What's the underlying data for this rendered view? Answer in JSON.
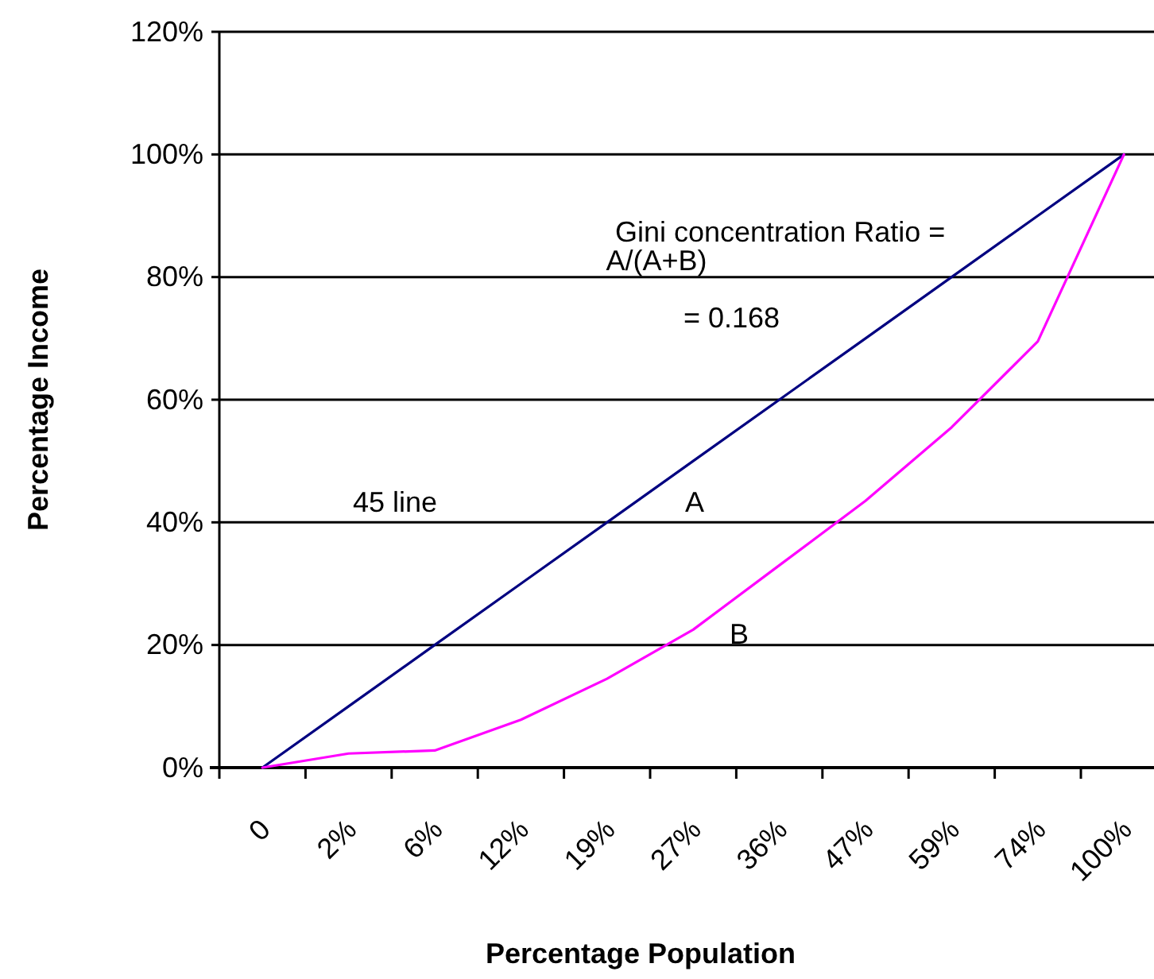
{
  "chart_data": {
    "type": "line",
    "xlabel": "Percentage Population",
    "ylabel": "Percentage Income",
    "categories": [
      "0",
      "2%",
      "6%",
      "12%",
      "19%",
      "27%",
      "36%",
      "47%",
      "59%",
      "74%",
      "100%"
    ],
    "series": [
      {
        "color": "#000080",
        "values": [
          0,
          10,
          20,
          30,
          40,
          50,
          60,
          70,
          80,
          90,
          100
        ]
      },
      {
        "color": "#ff00ff",
        "values": [
          0,
          2.3,
          2.8,
          7.8,
          14.5,
          22.5,
          33,
          43.5,
          55.5,
          69.5,
          100
        ]
      }
    ],
    "ylim": [
      0,
      120
    ],
    "yticks": [
      {
        "value": 0,
        "label": "0%"
      },
      {
        "value": 20,
        "label": "20%"
      },
      {
        "value": 40,
        "label": "40%"
      },
      {
        "value": 60,
        "label": "60%"
      },
      {
        "value": 80,
        "label": "80%"
      },
      {
        "value": 100,
        "label": "100%"
      },
      {
        "value": 120,
        "label": "120%"
      }
    ],
    "grid": "y",
    "annotations": [
      "Gini concentration Ratio =",
      "A/(A+B)",
      "= 0.168",
      "45 line",
      "A",
      "B"
    ]
  }
}
